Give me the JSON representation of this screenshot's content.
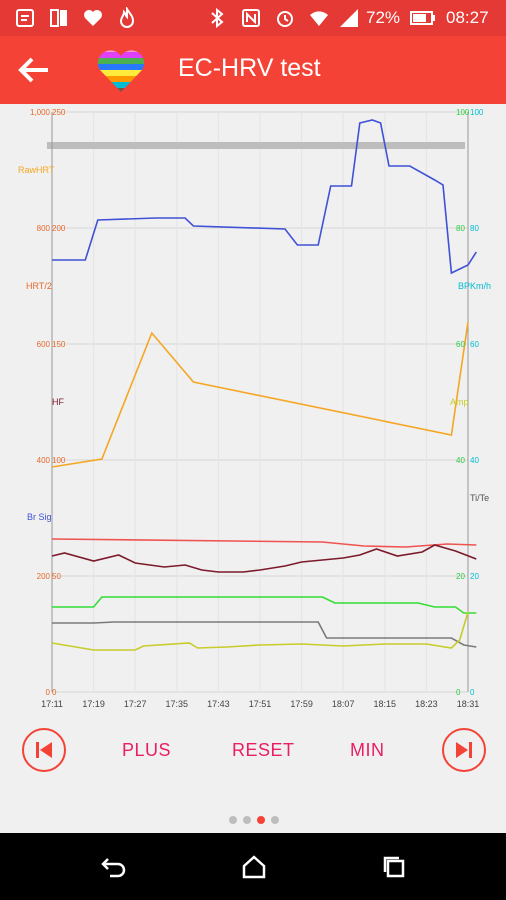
{
  "status_bar": {
    "battery_text": "72%",
    "time": "08:27",
    "icons": [
      "message-icon",
      "sim-icon",
      "heart-icon",
      "fire-icon",
      "bluetooth-icon",
      "nfc-icon",
      "alarm-icon",
      "wifi-icon",
      "signal-icon",
      "battery-icon"
    ]
  },
  "app_bar": {
    "title": "EC-HRV test",
    "back_icon": "arrow-left-icon",
    "logo_icon": "rainbow-heart-icon"
  },
  "chart_data": {
    "type": "line",
    "x": [
      "17:11",
      "17:19",
      "17:27",
      "17:35",
      "17:43",
      "17:51",
      "17:59",
      "18:07",
      "18:15",
      "18:23",
      "18:31"
    ],
    "left_ticks_a": [
      "1,000",
      "800",
      "600",
      "400",
      "200",
      "0"
    ],
    "left_ticks_b": [
      "250",
      "200",
      "150",
      "100",
      "50",
      "0"
    ],
    "right_ticks_a": [
      "100",
      "80",
      "60",
      "40",
      "20",
      "0"
    ],
    "right_ticks_b": [
      "100",
      "80",
      "60",
      "40",
      "20",
      "0"
    ],
    "axis_labels": {
      "raw_hrt": "RawHRT",
      "hrt2": "HRT/2",
      "hf": "HF",
      "br_sig": "Br Sig",
      "bpm": "BPKm/h",
      "amp": "Amp",
      "titc": "Ti/Te"
    },
    "colors": {
      "blue": "#3f51d6",
      "orange": "#f5a623",
      "red": "#ef5350",
      "maroon": "#7b1a2a",
      "green": "#33dd33",
      "gray": "#7a7a7a",
      "yellow": "#c8cc2a",
      "grid": "#d6d6d6",
      "left_orange": "#e8692c",
      "right_green": "#2ecc40",
      "right_cyan": "#00bcd4"
    },
    "series": [
      {
        "color_key": "blue",
        "points": [
          [
            0,
            260
          ],
          [
            0.8,
            260
          ],
          [
            1.1,
            220
          ],
          [
            2.5,
            218
          ],
          [
            3.2,
            218
          ],
          [
            3.4,
            226
          ],
          [
            5.6,
            229
          ],
          [
            5.9,
            245
          ],
          [
            6.4,
            245
          ],
          [
            6.7,
            186
          ],
          [
            7.2,
            186
          ],
          [
            7.4,
            123
          ],
          [
            7.7,
            120
          ],
          [
            7.9,
            123
          ],
          [
            8.1,
            166
          ],
          [
            8.6,
            166
          ],
          [
            9.2,
            180
          ],
          [
            9.4,
            185
          ],
          [
            9.6,
            273
          ],
          [
            10.0,
            265
          ],
          [
            10.2,
            252
          ]
        ]
      },
      {
        "color_key": "orange",
        "points": [
          [
            0,
            467
          ],
          [
            1.2,
            459
          ],
          [
            2.4,
            333
          ],
          [
            3.4,
            382
          ],
          [
            9.6,
            435
          ],
          [
            10.0,
            322
          ]
        ]
      },
      {
        "color_key": "red",
        "points": [
          [
            0,
            539
          ],
          [
            6.5,
            542
          ],
          [
            7.5,
            546
          ],
          [
            8.5,
            547
          ],
          [
            9.5,
            544
          ],
          [
            10.2,
            545
          ]
        ]
      },
      {
        "color_key": "maroon",
        "points": [
          [
            0,
            556
          ],
          [
            0.3,
            553
          ],
          [
            1.0,
            561
          ],
          [
            1.6,
            555
          ],
          [
            2.0,
            563
          ],
          [
            2.7,
            567
          ],
          [
            3.2,
            565
          ],
          [
            3.6,
            570
          ],
          [
            4.0,
            572
          ],
          [
            4.6,
            572
          ],
          [
            5.0,
            570
          ],
          [
            5.6,
            566
          ],
          [
            6.0,
            562
          ],
          [
            6.5,
            560
          ],
          [
            7.0,
            558
          ],
          [
            7.4,
            555
          ],
          [
            7.8,
            549
          ],
          [
            8.3,
            556
          ],
          [
            8.9,
            552
          ],
          [
            9.2,
            545
          ],
          [
            9.7,
            551
          ],
          [
            10.2,
            559
          ]
        ]
      },
      {
        "color_key": "green",
        "points": [
          [
            0,
            607
          ],
          [
            1.0,
            607
          ],
          [
            1.2,
            597
          ],
          [
            6.5,
            597
          ],
          [
            6.8,
            603
          ],
          [
            8.8,
            603
          ],
          [
            9.2,
            607
          ],
          [
            9.7,
            607
          ],
          [
            9.9,
            613
          ],
          [
            10.2,
            613
          ]
        ]
      },
      {
        "color_key": "gray",
        "points": [
          [
            0,
            623
          ],
          [
            1.0,
            623
          ],
          [
            1.5,
            622
          ],
          [
            6.4,
            622
          ],
          [
            6.6,
            638
          ],
          [
            9.6,
            638
          ],
          [
            9.9,
            645
          ],
          [
            10.2,
            647
          ]
        ]
      },
      {
        "color_key": "yellow",
        "points": [
          [
            0,
            643
          ],
          [
            1.0,
            650
          ],
          [
            2.0,
            650
          ],
          [
            2.2,
            646
          ],
          [
            3.3,
            643
          ],
          [
            3.5,
            648
          ],
          [
            4.2,
            647
          ],
          [
            5.0,
            645
          ],
          [
            6.0,
            644
          ],
          [
            7.0,
            646
          ],
          [
            8.0,
            644
          ],
          [
            9.0,
            644
          ],
          [
            9.6,
            648
          ],
          [
            9.8,
            640
          ],
          [
            10.0,
            612
          ]
        ]
      }
    ],
    "reference_band_y": 146
  },
  "controls": {
    "plus_label": "PLUS",
    "reset_label": "RESET",
    "min_label": "MIN",
    "prev_icon": "skip-previous-icon",
    "next_icon": "skip-next-icon"
  },
  "pager": {
    "count": 4,
    "active": 2
  },
  "nav_bar": {
    "icons": [
      "back-icon",
      "home-icon",
      "recents-icon"
    ]
  }
}
